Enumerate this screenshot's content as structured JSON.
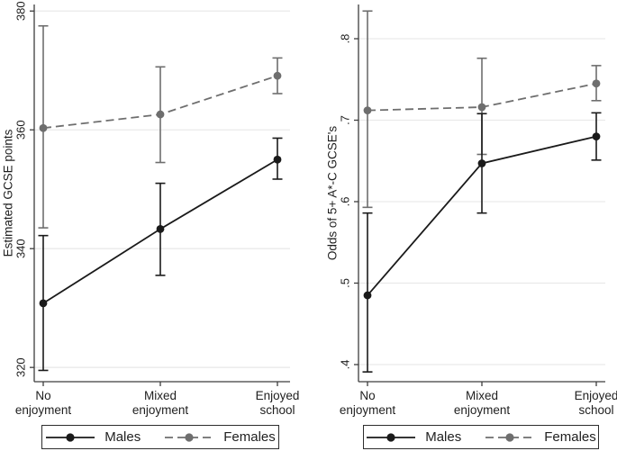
{
  "figure": {
    "description": "Two-panel line chart with error bars comparing males and females GCSE outcomes by school enjoyment",
    "background": "#ffffff"
  },
  "colors": {
    "grid": "#eaeaea",
    "axis": "#3d3d3d",
    "text": "#1f1f1f",
    "male": "#1a1a1a",
    "female": "#6e6e6e"
  },
  "chart_data": [
    {
      "type": "line",
      "panel": "left",
      "title": "",
      "xlabel": "",
      "ylabel": "Estimated GCSE points",
      "categories": [
        "No enjoyment",
        "Mixed enjoyment",
        "Enjoyed school"
      ],
      "yticks": [
        320,
        340,
        360,
        380
      ],
      "ytick_labels": [
        "320",
        "340",
        "360",
        "380"
      ],
      "ylim": [
        317.6,
        381.1
      ],
      "grid": "horizontal",
      "legend_position": "bottom",
      "error_bars": true,
      "series": [
        {
          "name": "Males",
          "color": "#1a1a1a",
          "line_style": "solid",
          "marker": "circle",
          "values": [
            330.8,
            343.3,
            355.0
          ],
          "ci_low": [
            319.5,
            335.5,
            351.7
          ],
          "ci_high": [
            342.2,
            351.0,
            358.6
          ]
        },
        {
          "name": "Females",
          "color": "#6e6e6e",
          "line_style": "dashed",
          "marker": "circle",
          "values": [
            360.3,
            362.6,
            369.1
          ],
          "ci_low": [
            343.5,
            354.5,
            366.1
          ],
          "ci_high": [
            377.5,
            370.6,
            372.1
          ]
        }
      ]
    },
    {
      "type": "line",
      "panel": "right",
      "title": "",
      "xlabel": "",
      "ylabel": "Odds of 5+ A*-C GCSE's",
      "categories": [
        "No enjoyment",
        "Mixed enjoyment",
        "Enjoyed school"
      ],
      "yticks": [
        0.4,
        0.5,
        0.6,
        0.7,
        0.8
      ],
      "ytick_labels": [
        ".4",
        ".5",
        ".6",
        ".7",
        ".8"
      ],
      "ylim": [
        0.379,
        0.842
      ],
      "grid": "horizontal",
      "legend_position": "bottom",
      "error_bars": true,
      "series": [
        {
          "name": "Males",
          "color": "#1a1a1a",
          "line_style": "solid",
          "marker": "circle",
          "values": [
            0.485,
            0.647,
            0.68
          ],
          "ci_low": [
            0.391,
            0.586,
            0.651
          ],
          "ci_high": [
            0.586,
            0.708,
            0.709
          ]
        },
        {
          "name": "Females",
          "color": "#6e6e6e",
          "line_style": "dashed",
          "marker": "circle",
          "values": [
            0.712,
            0.716,
            0.745
          ],
          "ci_low": [
            0.593,
            0.658,
            0.724
          ],
          "ci_high": [
            0.834,
            0.776,
            0.767
          ]
        }
      ]
    }
  ]
}
